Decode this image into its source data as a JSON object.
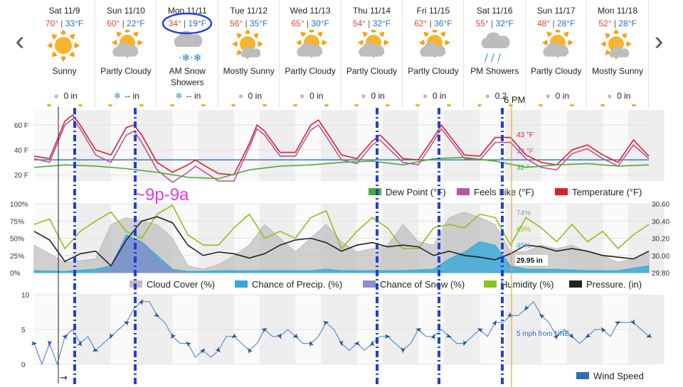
{
  "nav": {
    "prev_icon": "chevron-left-icon",
    "next_icon": "chevron-right-icon"
  },
  "days": [
    {
      "day": "Sat 11/9",
      "hi": "70°",
      "lo": "33°F",
      "icon": "sunny-icon",
      "cond": "Sunny",
      "precip": "0 in",
      "precip_icon": "rain-drop-icon"
    },
    {
      "day": "Sun 11/10",
      "hi": "60°",
      "lo": "22°F",
      "icon": "partly-cloudy-icon",
      "cond": "Partly Cloudy",
      "precip": "-- in",
      "precip_icon": "snowflake-icon"
    },
    {
      "day": "Mon 11/11",
      "hi": "34°",
      "lo": "19°F",
      "icon": "snow-showers-icon",
      "cond": "AM Snow Showers",
      "precip": "-- in",
      "precip_icon": "snowflake-icon"
    },
    {
      "day": "Tue 11/12",
      "hi": "56°",
      "lo": "35°F",
      "icon": "mostly-sunny-icon",
      "cond": "Mostly Sunny",
      "precip": "0 in",
      "precip_icon": "rain-drop-icon"
    },
    {
      "day": "Wed 11/13",
      "hi": "65°",
      "lo": "30°F",
      "icon": "partly-cloudy-icon",
      "cond": "Partly Cloudy",
      "precip": "0 in",
      "precip_icon": "rain-drop-icon"
    },
    {
      "day": "Thu 11/14",
      "hi": "54°",
      "lo": "32°F",
      "icon": "partly-cloudy-icon",
      "cond": "Partly Cloudy",
      "precip": "0 in",
      "precip_icon": "rain-drop-icon"
    },
    {
      "day": "Fri 11/15",
      "hi": "62°",
      "lo": "36°F",
      "icon": "partly-cloudy-icon",
      "cond": "Partly Cloudy",
      "precip": "0 in",
      "precip_icon": "rain-drop-icon"
    },
    {
      "day": "Sat 11/16",
      "hi": "55°",
      "lo": "32°F",
      "icon": "showers-icon",
      "cond": "PM Showers",
      "precip": "0.2",
      "precip_icon": "rain-drop-icon"
    },
    {
      "day": "Sun 11/17",
      "hi": "48°",
      "lo": "28°F",
      "icon": "partly-cloudy-icon",
      "cond": "Partly Cloudy",
      "precip": "0 in",
      "precip_icon": "rain-drop-icon"
    },
    {
      "day": "Mon 11/18",
      "hi": "52°",
      "lo": "28°F",
      "icon": "mostly-sunny-icon",
      "cond": "Mostly Sunny",
      "precip": "0 in",
      "precip_icon": "rain-drop-icon"
    }
  ],
  "colors": {
    "hi": "#e0463c",
    "lo": "#2a6fc4",
    "temperature": "#d9212c",
    "feels_like": "#b5589e",
    "dew_point": "#4caa3c",
    "freezing": "#3b78b5",
    "cloud": "#bdbdbd",
    "precip": "#35a8d8",
    "snow": "#8e8ec8",
    "humidity": "#8cc21e",
    "pressure": "#222222",
    "wind": "#2c6fb3",
    "annot": "#1f3fd6",
    "annot_text": "#e23ce8",
    "now": "#f0a050"
  },
  "annotations": {
    "time_marker": "6 PM",
    "snow_window": "~9p-9a",
    "now_arrow": "→"
  },
  "chart_data": [
    {
      "type": "line",
      "name": "temperature",
      "ylim": [
        15,
        72
      ],
      "ytick_labels": [
        "60 F",
        "40 F",
        "20 F"
      ],
      "yticks": [
        60,
        40,
        20
      ],
      "x_hours_start": 0,
      "freezing_line": 32,
      "series": [
        {
          "name": "Temperature (°F)",
          "x": [
            0,
            6,
            12,
            15,
            18,
            24,
            30,
            36,
            39,
            42,
            48,
            54,
            60,
            63,
            66,
            72,
            78,
            84,
            87,
            90,
            96,
            102,
            108,
            111,
            114,
            120,
            126,
            132,
            135,
            138,
            144,
            150,
            156,
            159,
            162,
            168,
            174,
            180,
            186,
            192,
            198,
            204,
            210,
            216,
            222,
            228,
            234,
            240
          ],
          "values": [
            35,
            33,
            63,
            68,
            60,
            40,
            36,
            58,
            60,
            52,
            30,
            22,
            28,
            32,
            28,
            21,
            20,
            45,
            60,
            55,
            38,
            38,
            60,
            64,
            55,
            36,
            33,
            47,
            52,
            46,
            33,
            32,
            50,
            60,
            52,
            36,
            35,
            50,
            50,
            36,
            30,
            28,
            40,
            44,
            36,
            30,
            48,
            35
          ]
        },
        {
          "name": "Feels Like (°F)",
          "x": [
            0,
            6,
            12,
            15,
            18,
            24,
            30,
            36,
            39,
            42,
            48,
            54,
            60,
            63,
            66,
            72,
            78,
            84,
            87,
            90,
            96,
            102,
            108,
            111,
            114,
            120,
            126,
            132,
            135,
            138,
            144,
            150,
            156,
            159,
            162,
            168,
            174,
            180,
            186,
            192,
            198,
            204,
            210,
            216,
            222,
            228,
            234,
            240
          ],
          "values": [
            33,
            30,
            60,
            65,
            57,
            36,
            30,
            52,
            55,
            46,
            24,
            14,
            22,
            27,
            23,
            15,
            15,
            42,
            57,
            52,
            35,
            35,
            56,
            60,
            51,
            32,
            29,
            44,
            48,
            42,
            30,
            28,
            47,
            57,
            49,
            33,
            32,
            46,
            46,
            33,
            26,
            24,
            37,
            41,
            33,
            27,
            44,
            33
          ]
        },
        {
          "name": "Dew Point (°F)",
          "x": [
            0,
            12,
            24,
            36,
            48,
            60,
            72,
            84,
            96,
            108,
            120,
            132,
            144,
            156,
            168,
            180,
            192,
            204,
            216,
            228,
            240
          ],
          "values": [
            26,
            28,
            27,
            25,
            22,
            18,
            17,
            24,
            27,
            28,
            30,
            31,
            28,
            33,
            34,
            31,
            26,
            28,
            29,
            27,
            28
          ]
        }
      ],
      "end_labels": [
        {
          "text": "43 °F",
          "series": "Temperature (°F)"
        },
        {
          "text": "39 °F",
          "series": "Feels Like (°F)"
        },
        {
          "text": "32 °",
          "series": "Dew Point (°F)"
        }
      ],
      "legend": [
        {
          "name": "Dew Point (°F)"
        },
        {
          "name": "Feels Like (°F)"
        },
        {
          "name": "Temperature (°F)"
        }
      ]
    },
    {
      "type": "area",
      "name": "sky",
      "ylim": [
        0,
        100
      ],
      "ytick_labels": [
        "100%",
        "75%",
        "50%",
        "25%",
        "0%"
      ],
      "yticks": [
        100,
        75,
        50,
        25,
        0
      ],
      "y2lim": [
        29.8,
        30.6
      ],
      "y2tick_labels": [
        "30.60",
        "30.40",
        "30.20",
        "30.00",
        "29.80"
      ],
      "y2ticks": [
        30.6,
        30.4,
        30.2,
        30.0,
        29.8
      ],
      "series": [
        {
          "name": "Cloud Cover (%)",
          "x": [
            0,
            12,
            24,
            30,
            36,
            42,
            48,
            54,
            60,
            66,
            72,
            78,
            84,
            90,
            96,
            102,
            108,
            114,
            120,
            126,
            132,
            138,
            144,
            150,
            156,
            162,
            168,
            174,
            180,
            186,
            192,
            198,
            204,
            210,
            216,
            222,
            228,
            234,
            240
          ],
          "values": [
            40,
            15,
            20,
            70,
            80,
            75,
            70,
            50,
            10,
            5,
            12,
            25,
            40,
            70,
            50,
            30,
            50,
            70,
            45,
            30,
            35,
            40,
            70,
            45,
            40,
            80,
            88,
            80,
            70,
            30,
            30,
            40,
            35,
            40,
            30,
            25,
            15,
            20,
            30
          ]
        },
        {
          "name": "Chance of Precip. (%)",
          "x": [
            0,
            12,
            24,
            30,
            36,
            42,
            48,
            54,
            60,
            66,
            72,
            96,
            108,
            114,
            120,
            144,
            156,
            162,
            168,
            174,
            180,
            186,
            192,
            204,
            216,
            228,
            240
          ],
          "values": [
            3,
            2,
            5,
            10,
            55,
            45,
            25,
            5,
            2,
            2,
            3,
            3,
            3,
            5,
            3,
            3,
            5,
            20,
            30,
            45,
            40,
            10,
            5,
            5,
            3,
            3,
            10
          ]
        },
        {
          "name": "Chance of Snow (%)",
          "x": [
            24,
            30,
            36,
            42,
            48,
            54,
            60
          ],
          "values": [
            0,
            5,
            50,
            45,
            20,
            2,
            0
          ]
        },
        {
          "name": "Humidity (%)",
          "x": [
            0,
            6,
            12,
            18,
            24,
            30,
            36,
            42,
            48,
            54,
            60,
            66,
            72,
            78,
            84,
            90,
            96,
            102,
            108,
            114,
            120,
            126,
            132,
            138,
            144,
            150,
            156,
            162,
            168,
            174,
            180,
            186,
            192,
            198,
            204,
            210,
            216,
            222,
            228,
            234,
            240
          ],
          "values": [
            70,
            78,
            35,
            60,
            75,
            88,
            60,
            50,
            85,
            98,
            55,
            40,
            40,
            65,
            85,
            50,
            60,
            50,
            80,
            90,
            35,
            60,
            80,
            65,
            35,
            35,
            65,
            70,
            65,
            85,
            80,
            40,
            80,
            65,
            45,
            70,
            45,
            60,
            35,
            55,
            70
          ]
        },
        {
          "name": "Pressure. (in)",
          "x": [
            0,
            6,
            12,
            18,
            24,
            30,
            36,
            42,
            48,
            54,
            60,
            66,
            72,
            78,
            84,
            90,
            96,
            102,
            108,
            114,
            120,
            126,
            132,
            138,
            144,
            150,
            156,
            162,
            168,
            174,
            180,
            186,
            192,
            198,
            204,
            210,
            216,
            222,
            228,
            234,
            240
          ],
          "values": [
            30.28,
            30.18,
            29.93,
            30.02,
            30.05,
            29.88,
            30.18,
            30.4,
            30.45,
            30.38,
            30.12,
            30.0,
            30.04,
            30.02,
            29.97,
            30.02,
            30.12,
            30.18,
            30.2,
            30.15,
            30.05,
            30.12,
            30.15,
            30.1,
            30.12,
            30.1,
            30.0,
            30.05,
            30.0,
            29.98,
            29.95,
            30.02,
            30.12,
            30.1,
            30.05,
            30.08,
            30.05,
            30.0,
            29.98,
            29.96,
            30.05
          ]
        }
      ],
      "end_labels": [
        {
          "text": "74%",
          "series": "Cloud Cover (%)"
        },
        {
          "text": "65%",
          "series": "Humidity (%)"
        },
        {
          "text": "45%",
          "series": "Chance of Precip. (%)"
        },
        {
          "text": "29.95 in",
          "series": "Pressure. (in)"
        }
      ],
      "legend": [
        {
          "name": "Cloud Cover (%)"
        },
        {
          "name": "Chance of Precip. (%)"
        },
        {
          "name": "Chance of Snow (%)"
        },
        {
          "name": "Humidity (%)"
        },
        {
          "name": "Pressure. (in)"
        }
      ]
    },
    {
      "type": "line",
      "name": "wind",
      "ylim": [
        0,
        10
      ],
      "ytick_labels": [
        "10",
        "5",
        "0"
      ],
      "yticks": [
        10,
        5,
        0
      ],
      "series": [
        {
          "name": "Wind Speed",
          "x": [
            0,
            3,
            6,
            9,
            12,
            15,
            18,
            21,
            24,
            27,
            30,
            33,
            36,
            39,
            42,
            45,
            48,
            51,
            54,
            57,
            60,
            63,
            66,
            69,
            72,
            75,
            78,
            81,
            84,
            87,
            90,
            93,
            96,
            99,
            102,
            105,
            108,
            111,
            114,
            117,
            120,
            123,
            126,
            129,
            132,
            135,
            138,
            141,
            144,
            147,
            150,
            153,
            156,
            159,
            162,
            165,
            168,
            171,
            174,
            177,
            180,
            183,
            186,
            189,
            192,
            195,
            198,
            201,
            204,
            207,
            210,
            213,
            216,
            219,
            222,
            225,
            228,
            231,
            234,
            237,
            240
          ],
          "values": [
            3,
            0,
            3,
            0,
            4,
            5,
            3,
            4,
            2,
            3,
            4,
            5,
            6,
            8,
            9,
            9,
            7,
            6,
            4,
            3,
            3,
            1,
            2,
            1,
            2,
            4,
            4,
            3,
            2,
            3,
            5,
            4,
            4,
            5,
            4,
            3,
            3,
            4,
            6,
            5,
            3,
            2,
            3,
            2,
            3,
            4,
            4,
            3,
            2,
            3,
            5,
            4,
            4,
            5,
            4,
            3,
            3,
            4,
            5,
            4,
            6,
            6,
            7,
            7,
            8,
            9,
            7,
            6,
            4,
            5,
            4,
            3,
            4,
            5,
            5,
            4,
            6,
            6,
            6,
            5,
            4
          ]
        }
      ],
      "end_labels": [
        {
          "text": "5 mph from NNE",
          "series": "Wind Speed"
        }
      ],
      "legend": [
        {
          "name": "Wind Speed"
        }
      ]
    }
  ]
}
